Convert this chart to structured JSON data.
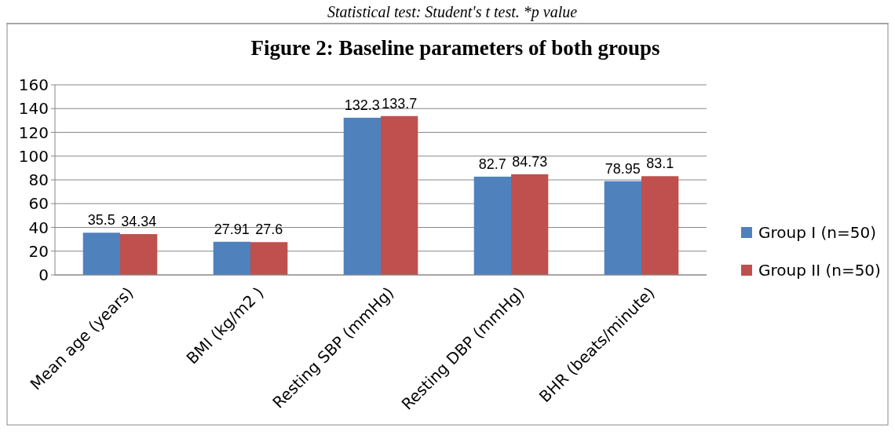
{
  "chart_data": {
    "type": "bar",
    "title": "Figure 2: Baseline parameters of both groups",
    "annotations": [
      "Statistical test: Student's t test. *p value"
    ],
    "categories": [
      "Mean age (years)",
      "BMI (kg/m2 )",
      "Resting SBP (mmHg)",
      "Resting DBP (mmHg)",
      "BHR (beats/minute)"
    ],
    "series": [
      {
        "name": "Group I (n=50)",
        "color": "#4f81bd",
        "values": [
          35.5,
          27.91,
          132.3,
          82.7,
          78.95
        ]
      },
      {
        "name": "Group II (n=50)",
        "color": "#c0504d",
        "values": [
          34.34,
          27.6,
          133.7,
          84.73,
          83.1
        ]
      }
    ],
    "ylim": [
      0,
      160
    ],
    "yticks": [
      0,
      20,
      40,
      60,
      80,
      100,
      120,
      140,
      160
    ],
    "grid": "y",
    "legend": "right",
    "data_labels": true
  }
}
